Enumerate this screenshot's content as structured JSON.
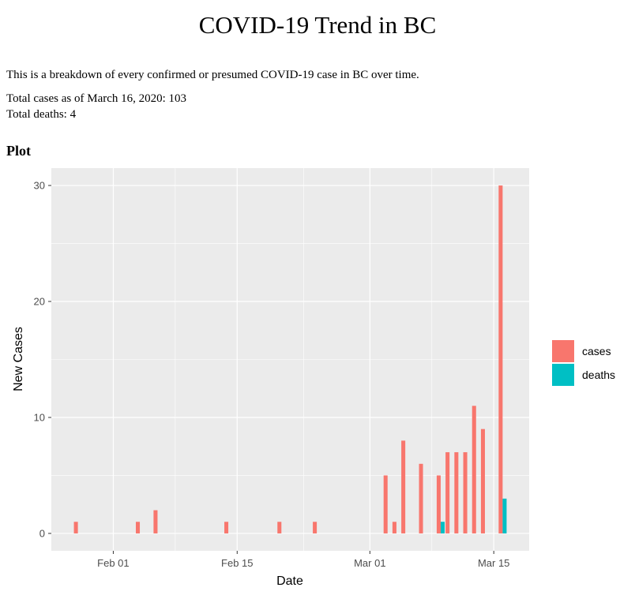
{
  "page": {
    "title": "COVID-19 Trend in BC",
    "description": "This is a breakdown of every confirmed or presumed COVID-19 case in BC over time.",
    "total_cases_line": "Total cases as of March 16, 2020: 103",
    "total_deaths_line": "Total deaths: 4",
    "section_heading": "Plot"
  },
  "chart_data": {
    "type": "bar",
    "xlabel": "Date",
    "ylabel": "New Cases",
    "xlim": [
      "2020-01-25",
      "2020-03-19"
    ],
    "ylim": [
      -1.5,
      31.5
    ],
    "x_ticks": [
      {
        "date": "2020-02-01",
        "label": "Feb 01"
      },
      {
        "date": "2020-02-15",
        "label": "Feb 15"
      },
      {
        "date": "2020-03-01",
        "label": "Mar 01"
      },
      {
        "date": "2020-03-15",
        "label": "Mar 15"
      }
    ],
    "y_ticks": [
      0,
      10,
      20,
      30
    ],
    "grid": true,
    "legend_position": "right",
    "series": [
      {
        "name": "cases",
        "color": "#F8766D",
        "points": [
          {
            "date": "2020-01-28",
            "value": 1
          },
          {
            "date": "2020-02-04",
            "value": 1
          },
          {
            "date": "2020-02-06",
            "value": 2
          },
          {
            "date": "2020-02-14",
            "value": 1
          },
          {
            "date": "2020-02-20",
            "value": 1
          },
          {
            "date": "2020-02-24",
            "value": 1
          },
          {
            "date": "2020-03-03",
            "value": 5
          },
          {
            "date": "2020-03-04",
            "value": 1
          },
          {
            "date": "2020-03-05",
            "value": 8
          },
          {
            "date": "2020-03-07",
            "value": 6
          },
          {
            "date": "2020-03-09",
            "value": 5
          },
          {
            "date": "2020-03-10",
            "value": 7
          },
          {
            "date": "2020-03-11",
            "value": 7
          },
          {
            "date": "2020-03-12",
            "value": 7
          },
          {
            "date": "2020-03-13",
            "value": 11
          },
          {
            "date": "2020-03-14",
            "value": 9
          },
          {
            "date": "2020-03-16",
            "value": 30
          }
        ]
      },
      {
        "name": "deaths",
        "color": "#00BFC4",
        "points": [
          {
            "date": "2020-03-09",
            "value": 1
          },
          {
            "date": "2020-03-16",
            "value": 3
          }
        ]
      }
    ]
  }
}
